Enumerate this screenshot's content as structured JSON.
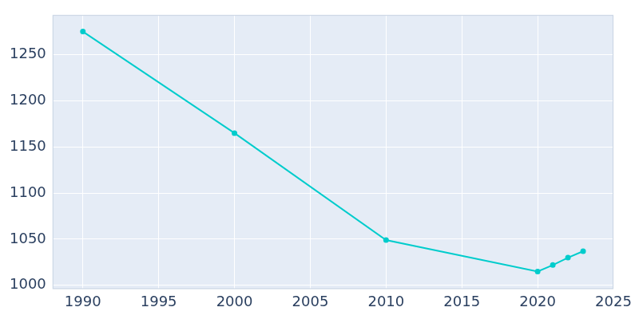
{
  "chart_data": {
    "type": "line",
    "x": [
      1990,
      2000,
      2010,
      2020,
      2021,
      2022,
      2023
    ],
    "values": [
      1275,
      1165,
      1049,
      1015,
      1022,
      1030,
      1037
    ],
    "color": "#00cccc",
    "marker": "circle",
    "xlim": [
      1988,
      2025
    ],
    "xticks": [
      1990,
      1995,
      2000,
      2005,
      2010,
      2015,
      2020,
      2025
    ],
    "ylim": [
      996,
      1293
    ],
    "yticks": [
      1000,
      1050,
      1100,
      1150,
      1200,
      1250
    ],
    "grid": true
  }
}
